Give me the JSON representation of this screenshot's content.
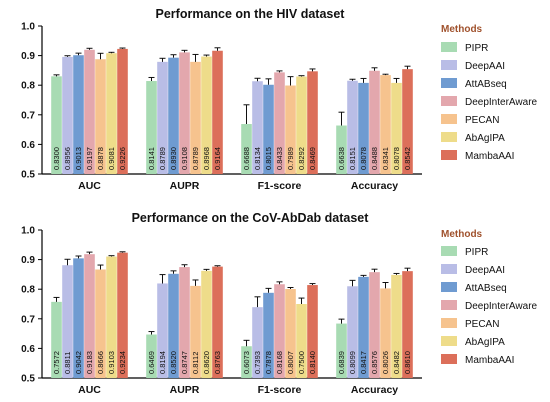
{
  "chart_data": [
    {
      "type": "bar",
      "title": "Performance on the HIV dataset",
      "categories": [
        "AUC",
        "AUPR",
        "F1-score",
        "Accuracy"
      ],
      "ylim": [
        0.5,
        1.0
      ],
      "yticks": [
        "0.5",
        "0.6",
        "0.7",
        "0.8",
        "0.9",
        "1.0"
      ],
      "legend_title": "Methods",
      "legend_position": "right",
      "series": [
        {
          "name": "PIPR",
          "color": "#a8dbb3",
          "values": [
            0.83,
            0.8141,
            0.6688,
            0.6638
          ],
          "errors": [
            0.005,
            0.012,
            0.065,
            0.045
          ],
          "labels": [
            "0.8300",
            "0.8141",
            "0.6688",
            "0.6638"
          ]
        },
        {
          "name": "DeepAAI",
          "color": "#b9bde6",
          "values": [
            0.8956,
            0.8789,
            0.8134,
            0.8151
          ],
          "errors": [
            0.004,
            0.012,
            0.01,
            0.005
          ],
          "labels": [
            "0.8956",
            "0.8789",
            "0.8134",
            "0.8151"
          ]
        },
        {
          "name": "AttABseq",
          "color": "#6f9bd1",
          "values": [
            0.9013,
            0.893,
            0.8015,
            0.8078
          ],
          "errors": [
            0.007,
            0.01,
            0.02,
            0.015
          ],
          "labels": [
            "0.9013",
            "0.8930",
            "0.8015",
            "0.8078"
          ]
        },
        {
          "name": "DeepInterAware",
          "color": "#e3a7ad",
          "values": [
            0.9197,
            0.9108,
            0.8433,
            0.8488
          ],
          "errors": [
            0.005,
            0.007,
            0.005,
            0.01
          ],
          "labels": [
            "0.9197",
            "0.9108",
            "0.8433",
            "0.8488"
          ]
        },
        {
          "name": "PECAN",
          "color": "#f6c38e",
          "values": [
            0.8878,
            0.8789,
            0.7989,
            0.8341
          ],
          "errors": [
            0.02,
            0.025,
            0.03,
            0.003
          ],
          "labels": [
            "0.8878",
            "0.8789",
            "0.7989",
            "0.8341"
          ]
        },
        {
          "name": "AbAgIPA",
          "color": "#eedc8a",
          "values": [
            0.9081,
            0.8968,
            0.8292,
            0.8078
          ],
          "errors": [
            0.003,
            0.005,
            0.003,
            0.015
          ],
          "labels": [
            "0.9081",
            "0.8968",
            "0.8292",
            "0.8078"
          ]
        },
        {
          "name": "MambaAAI",
          "color": "#dc6f5a",
          "values": [
            0.9226,
            0.9164,
            0.8469,
            0.8542
          ],
          "errors": [
            0.003,
            0.01,
            0.008,
            0.01
          ],
          "labels": [
            "0.9226",
            "0.9164",
            "0.8469",
            "0.8542"
          ]
        }
      ]
    },
    {
      "type": "bar",
      "title": "Performance on the CoV-AbDab dataset",
      "categories": [
        "AUC",
        "AUPR",
        "F1-score",
        "Accuracy"
      ],
      "ylim": [
        0.5,
        1.0
      ],
      "yticks": [
        "0.5",
        "0.6",
        "0.7",
        "0.8",
        "0.9",
        "1.0"
      ],
      "legend_title": "Methods",
      "legend_position": "right",
      "series": [
        {
          "name": "PIPR",
          "color": "#a8dbb3",
          "values": [
            0.7572,
            0.6469,
            0.6073,
            0.6839
          ],
          "errors": [
            0.015,
            0.01,
            0.02,
            0.015
          ],
          "labels": [
            "0.7572",
            "0.6469",
            "0.6073",
            "0.6839"
          ]
        },
        {
          "name": "DeepAAI",
          "color": "#b9bde6",
          "values": [
            0.8811,
            0.8194,
            0.7393,
            0.8099
          ],
          "errors": [
            0.02,
            0.03,
            0.035,
            0.02
          ],
          "labels": [
            "0.8811",
            "0.8194",
            "0.7393",
            "0.8099"
          ]
        },
        {
          "name": "AttABseq",
          "color": "#6f9bd1",
          "values": [
            0.9042,
            0.852,
            0.7878,
            0.8417
          ],
          "errors": [
            0.008,
            0.01,
            0.015,
            0.005
          ],
          "labels": [
            "0.9042",
            "0.8520",
            "0.7878",
            "0.8417"
          ]
        },
        {
          "name": "DeepInterAware",
          "color": "#e3a7ad",
          "values": [
            0.9183,
            0.8747,
            0.8168,
            0.8576
          ],
          "errors": [
            0.007,
            0.008,
            0.008,
            0.01
          ],
          "labels": [
            "0.9183",
            "0.8747",
            "0.8168",
            "0.8576"
          ]
        },
        {
          "name": "PECAN",
          "color": "#f6c38e",
          "values": [
            0.8666,
            0.8112,
            0.8007,
            0.8026
          ],
          "errors": [
            0.015,
            0.02,
            0.005,
            0.02
          ],
          "labels": [
            "0.8666",
            "0.8112",
            "0.8007",
            "0.8026"
          ]
        },
        {
          "name": "AbAgIPA",
          "color": "#eedc8a",
          "values": [
            0.9103,
            0.862,
            0.75,
            0.8482
          ],
          "errors": [
            0.003,
            0.005,
            0.02,
            0.005
          ],
          "labels": [
            "0.9103",
            "0.8620",
            "0.7500",
            "0.8482"
          ]
        },
        {
          "name": "MambaAAI",
          "color": "#dc6f5a",
          "values": [
            0.9234,
            0.8763,
            0.814,
            0.861
          ],
          "errors": [
            0.003,
            0.003,
            0.005,
            0.01
          ],
          "labels": [
            "0.9234",
            "0.8763",
            "0.8140",
            "0.8610"
          ]
        }
      ]
    }
  ]
}
